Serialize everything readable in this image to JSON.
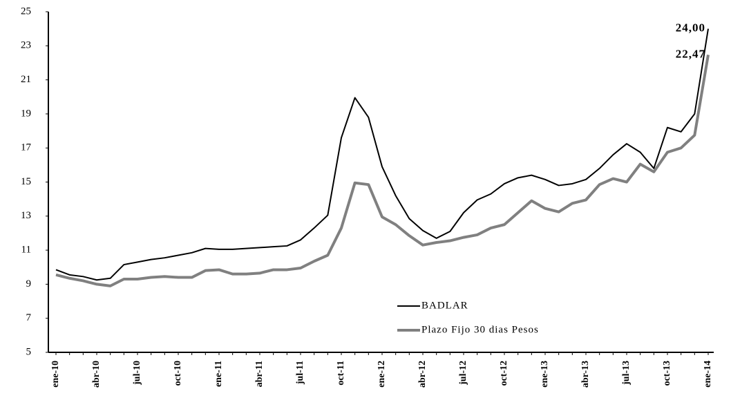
{
  "chart_data": {
    "type": "line",
    "categories": [
      "ene-10",
      null,
      null,
      "abr-10",
      null,
      null,
      "jul-10",
      null,
      null,
      "oct-10",
      null,
      null,
      "ene-11",
      null,
      null,
      "abr-11",
      null,
      null,
      "jul-11",
      null,
      null,
      "oct-11",
      null,
      null,
      "ene-12",
      null,
      null,
      "abr-12",
      null,
      null,
      "jul-12",
      null,
      null,
      "oct-12",
      null,
      null,
      "ene-13",
      null,
      null,
      "abr-13",
      null,
      null,
      "jul-13",
      null,
      null,
      "oct-13",
      null,
      null,
      "ene-14"
    ],
    "series": [
      {
        "name": "BADLAR",
        "color": "#000000",
        "width": 2,
        "values": [
          9.85,
          9.55,
          9.45,
          9.25,
          9.35,
          10.15,
          10.3,
          10.45,
          10.55,
          10.7,
          10.85,
          11.1,
          11.05,
          11.05,
          11.1,
          11.15,
          11.2,
          11.25,
          11.6,
          12.3,
          13.05,
          17.6,
          19.95,
          18.8,
          15.9,
          14.2,
          12.85,
          12.15,
          11.7,
          12.1,
          13.2,
          13.95,
          14.3,
          14.9,
          15.25,
          15.4,
          15.15,
          14.8,
          14.9,
          15.15,
          15.8,
          16.6,
          17.25,
          16.75,
          15.8,
          18.2,
          17.95,
          19.0,
          24.0
        ],
        "value_labels": [
          null,
          null,
          null,
          null,
          null,
          null,
          null,
          null,
          null,
          null,
          null,
          null,
          null,
          null,
          null,
          null,
          null,
          null,
          null,
          null,
          null,
          null,
          null,
          null,
          null,
          null,
          null,
          null,
          null,
          null,
          null,
          null,
          null,
          null,
          null,
          null,
          null,
          null,
          null,
          null,
          null,
          null,
          null,
          null,
          null,
          null,
          null,
          null,
          "24,00"
        ]
      },
      {
        "name": "Plazo Fijo 30 dias Pesos",
        "color": "#808080",
        "width": 4,
        "values": [
          9.55,
          9.35,
          9.2,
          9.0,
          8.9,
          9.3,
          9.3,
          9.4,
          9.45,
          9.4,
          9.4,
          9.8,
          9.85,
          9.6,
          9.6,
          9.65,
          9.85,
          9.85,
          9.95,
          10.35,
          10.7,
          12.3,
          14.95,
          14.85,
          12.95,
          12.5,
          11.85,
          11.3,
          11.45,
          11.55,
          11.75,
          11.9,
          12.3,
          12.5,
          13.2,
          13.9,
          13.45,
          13.25,
          13.75,
          13.95,
          14.85,
          15.2,
          15.0,
          16.05,
          15.6,
          16.75,
          17.0,
          17.75,
          22.47
        ],
        "value_labels": [
          null,
          null,
          null,
          null,
          null,
          null,
          null,
          null,
          null,
          null,
          null,
          null,
          null,
          null,
          null,
          null,
          null,
          null,
          null,
          null,
          null,
          null,
          null,
          null,
          null,
          null,
          null,
          null,
          null,
          null,
          null,
          null,
          null,
          null,
          null,
          null,
          null,
          null,
          null,
          null,
          null,
          null,
          null,
          null,
          null,
          null,
          null,
          null,
          "22,47"
        ]
      }
    ],
    "ylim": [
      5,
      25
    ],
    "yticks": [
      5,
      7,
      9,
      11,
      13,
      15,
      17,
      19,
      21,
      23,
      25
    ],
    "grid": false,
    "legend": "bottom-center"
  }
}
